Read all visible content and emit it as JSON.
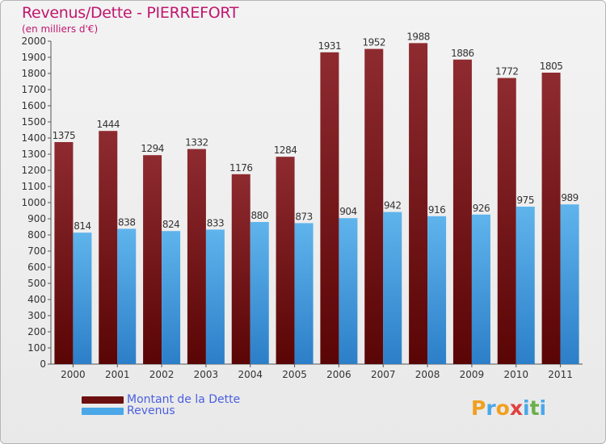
{
  "chart_data": {
    "type": "bar",
    "title": "Revenus/Dette - PIERREFORT",
    "subtitle": "(en milliers d'€)",
    "categories": [
      "2000",
      "2001",
      "2002",
      "2003",
      "2004",
      "2005",
      "2006",
      "2007",
      "2008",
      "2009",
      "2010",
      "2011"
    ],
    "series": [
      {
        "name": "Montant de la Dette",
        "color": "#8b1a1a",
        "values": [
          1375,
          1444,
          1294,
          1332,
          1176,
          1284,
          1931,
          1952,
          1988,
          1886,
          1772,
          1805
        ]
      },
      {
        "name": "Revenus",
        "color": "#4aa8e8",
        "values": [
          814,
          838,
          824,
          833,
          880,
          873,
          904,
          942,
          916,
          926,
          975,
          989
        ]
      }
    ],
    "ylim": [
      0,
      2000
    ],
    "yticks": [
      0,
      100,
      200,
      300,
      400,
      500,
      600,
      700,
      800,
      900,
      1000,
      1100,
      1200,
      1300,
      1400,
      1500,
      1600,
      1700,
      1800,
      1900,
      2000
    ],
    "grid": false,
    "legend": "bottom-left"
  },
  "legend": {
    "debt_label": "Montant de la Dette",
    "revenue_label": "Revenus",
    "debt_color": "#6b0f0f",
    "revenue_color": "#4aa8e8"
  },
  "logo": {
    "text": "Proxiti",
    "letters": [
      "P",
      "r",
      "o",
      "x",
      "i",
      "t",
      "i"
    ],
    "colors": [
      "#f0a020",
      "#4aa8e8",
      "#f0a020",
      "#e04040",
      "#4aa8e8",
      "#6ab04c",
      "#4aa8e8"
    ]
  }
}
